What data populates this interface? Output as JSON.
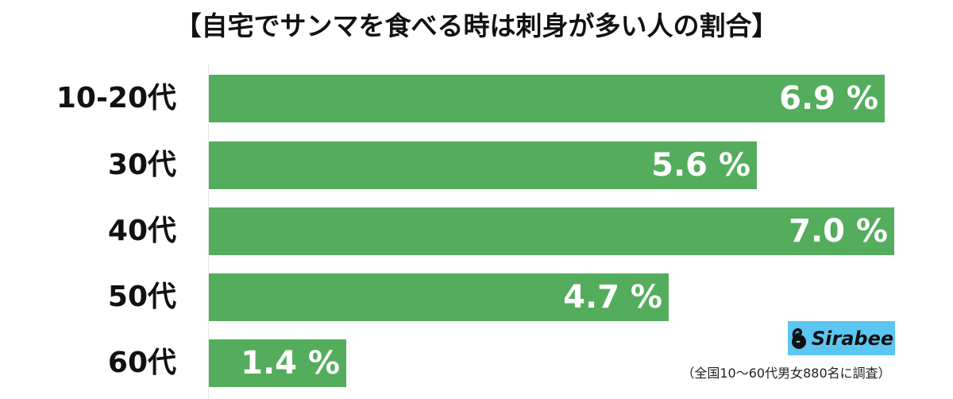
{
  "chart_data": {
    "type": "bar",
    "orientation": "horizontal",
    "title": "【自宅でサンマを食べる時は刺身が多い人の割合】",
    "categories": [
      "10-20代",
      "30代",
      "40代",
      "50代",
      "60代"
    ],
    "values": [
      6.9,
      5.6,
      7.0,
      4.7,
      1.4
    ],
    "value_labels": [
      "6.9 %",
      "5.6 %",
      "7.0 %",
      "4.7 %",
      "1.4 %"
    ],
    "unit": "%",
    "xlabel": "",
    "ylabel": "",
    "xlim": [
      0,
      7.0
    ],
    "grid": false,
    "legend": null,
    "bar_color": "#54ad5c",
    "annotations": [
      "Sirabee",
      "（全国10〜60代男女880名に調査）"
    ]
  },
  "header": {
    "title": "【自宅でサンマを食べる時は刺身が多い人の割合】"
  },
  "rows": [
    {
      "label": "10-20代",
      "value_label": "6.9 %"
    },
    {
      "label": "30代",
      "value_label": "5.6 %"
    },
    {
      "label": "40代",
      "value_label": "7.0 %"
    },
    {
      "label": "50代",
      "value_label": "4.7 %"
    },
    {
      "label": "60代",
      "value_label": "1.4 %"
    }
  ],
  "logo": {
    "text": "Sirabee",
    "icon": "sirabee-swan-icon",
    "bg_color": "#5cc6f2"
  },
  "footnote": "（全国10〜60代男女880名に調査）",
  "colors": {
    "bar": "#54ad5c",
    "text": "#111111",
    "bar_text": "#ffffff"
  }
}
